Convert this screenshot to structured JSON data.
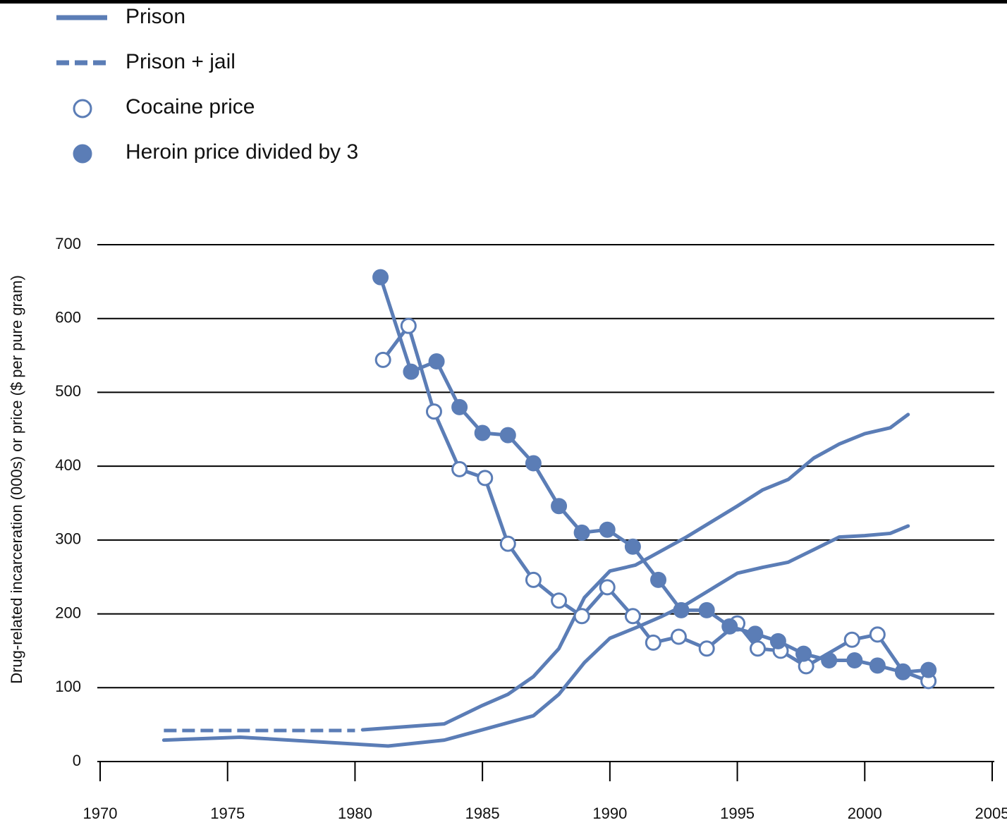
{
  "chart_data": {
    "type": "line",
    "y_label": "Drug-related incarceration (000s) or price ($ per pure gram)",
    "xlim": [
      1970,
      2005
    ],
    "xticks": [
      1970,
      1975,
      1980,
      1985,
      1990,
      1995,
      2000,
      2005
    ],
    "ylim": [
      0,
      700
    ],
    "yticks": [
      0,
      100,
      200,
      300,
      400,
      500,
      600,
      700
    ],
    "grid": true,
    "legend": "top-left",
    "series": [
      {
        "name": "Prison",
        "color": "#5b7db6",
        "line_style": "solid",
        "marker": "none",
        "x": [
          1972.5,
          1975.5,
          1981.3,
          1983.5,
          1985,
          1987,
          1988,
          1989,
          1990,
          1991,
          1992,
          1993,
          1994,
          1995,
          1996,
          1997,
          1998,
          1999,
          2000,
          2001,
          2001.7
        ],
        "values": [
          29,
          33,
          21,
          29,
          43,
          62,
          91,
          134,
          167,
          181,
          196,
          213,
          234,
          255,
          263,
          270,
          287,
          304,
          306,
          309,
          319
        ]
      },
      {
        "name": "Prison + jail",
        "color": "#5b7db6",
        "line_style": "dashed",
        "dashed_until": 1980,
        "marker": "none",
        "x": [
          1972.5,
          1980,
          1980.3,
          1983.5,
          1985,
          1986,
          1987,
          1988,
          1989,
          1990,
          1991,
          1992,
          1993,
          1994,
          1995,
          1996,
          1997,
          1998,
          1999,
          2000,
          2001,
          2001.7
        ],
        "values": [
          42,
          42,
          43,
          51,
          76,
          91,
          115,
          153,
          222,
          258,
          266,
          285,
          304,
          325,
          346,
          368,
          382,
          411,
          430,
          444,
          452,
          470
        ]
      },
      {
        "name": "Cocaine price",
        "color": "#5b7db6",
        "line_style": "solid",
        "marker": "open",
        "x": [
          1981.1,
          1982.1,
          1983.1,
          1984.1,
          1985.1,
          1986.0,
          1987.0,
          1988.0,
          1988.9,
          1989.9,
          1990.9,
          1991.7,
          1992.7,
          1993.8,
          1995.0,
          1995.8,
          1996.7,
          1997.7,
          1999.5,
          2000.5,
          2001.5,
          2002.5
        ],
        "values": [
          544,
          590,
          474,
          396,
          384,
          295,
          246,
          218,
          197,
          236,
          197,
          161,
          169,
          153,
          187,
          153,
          150,
          129,
          165,
          172,
          122,
          109
        ]
      },
      {
        "name": "Heroin price divided by 3",
        "color": "#5b7db6",
        "line_style": "solid",
        "marker": "filled",
        "x": [
          1981.0,
          1982.2,
          1983.2,
          1984.1,
          1985.0,
          1986.0,
          1987.0,
          1988.0,
          1988.9,
          1989.9,
          1990.9,
          1991.9,
          1992.8,
          1993.8,
          1994.7,
          1995.7,
          1996.6,
          1997.6,
          1998.6,
          1999.6,
          2000.5,
          2001.5,
          2002.5
        ],
        "values": [
          656,
          528,
          542,
          480,
          445,
          442,
          404,
          346,
          310,
          314,
          291,
          246,
          205,
          205,
          183,
          173,
          163,
          146,
          137,
          137,
          130,
          121,
          124
        ]
      }
    ]
  }
}
